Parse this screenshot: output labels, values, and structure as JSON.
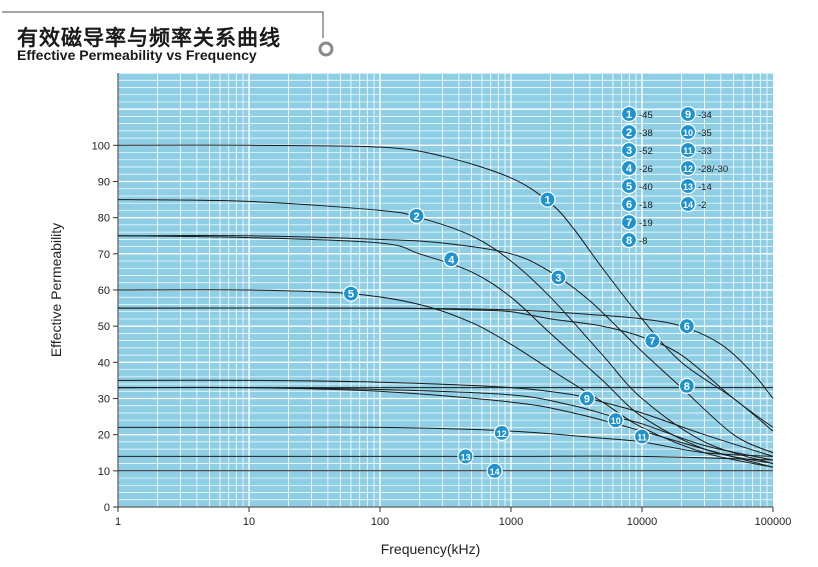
{
  "title_zh": "有效磁导率与频率关系曲线",
  "title_en": "Effective Permeability vs Frequency",
  "colors": {
    "plot_bg": "#8ecfe6",
    "grid": "#ffffff",
    "curve": "#1a1a1a",
    "marker": "#1f93cf",
    "marker_text": "#ffffff"
  },
  "chart_data": {
    "type": "line",
    "title": "Effective Permeability vs Frequency",
    "xlabel": "Frequency(kHz)",
    "ylabel": "Effective Permeability",
    "x_scale": "log",
    "xlim": [
      1,
      100000
    ],
    "ylim": [
      0,
      120
    ],
    "grid": true,
    "x_ticks": [
      1,
      10,
      100,
      1000,
      10000,
      100000
    ],
    "x_tick_labels": [
      "1",
      "10",
      "100",
      "1000",
      "10000",
      "100000"
    ],
    "y_ticks": [
      0,
      10,
      20,
      30,
      40,
      50,
      60,
      70,
      80,
      90,
      100
    ],
    "y_tick_labels": [
      "0",
      "10",
      "20",
      "30",
      "40",
      "50",
      "60",
      "70",
      "80",
      "90",
      "100"
    ],
    "legend_position": "top-right",
    "series": [
      {
        "name": "-45",
        "marker": "1",
        "marker_at": [
          1900,
          85
        ],
        "points": [
          [
            1,
            100
          ],
          [
            10,
            100
          ],
          [
            100,
            99.5
          ],
          [
            300,
            97
          ],
          [
            1000,
            91
          ],
          [
            2000,
            84
          ],
          [
            3000,
            77
          ],
          [
            5000,
            66
          ],
          [
            10000,
            52
          ],
          [
            20000,
            40
          ],
          [
            50000,
            30
          ],
          [
            100000,
            21
          ]
        ]
      },
      {
        "name": "-38",
        "marker": "2",
        "marker_at": [
          190,
          80.5
        ],
        "points": [
          [
            1,
            85
          ],
          [
            10,
            84.5
          ],
          [
            100,
            82
          ],
          [
            200,
            80
          ],
          [
            500,
            75
          ],
          [
            1000,
            68
          ],
          [
            2000,
            58
          ],
          [
            5000,
            42
          ],
          [
            10000,
            30
          ],
          [
            30000,
            18
          ],
          [
            100000,
            12
          ]
        ]
      },
      {
        "name": "-52",
        "marker": "3",
        "marker_at": [
          2300,
          63.5
        ],
        "points": [
          [
            1,
            75
          ],
          [
            10,
            75
          ],
          [
            100,
            74
          ],
          [
            300,
            73
          ],
          [
            1000,
            70
          ],
          [
            2000,
            65
          ],
          [
            4000,
            57
          ],
          [
            10000,
            43
          ],
          [
            20000,
            33
          ],
          [
            50000,
            20
          ],
          [
            100000,
            15
          ]
        ]
      },
      {
        "name": "-26",
        "marker": "4",
        "marker_at": [
          350,
          68.5
        ],
        "points": [
          [
            1,
            75
          ],
          [
            10,
            74.5
          ],
          [
            100,
            73
          ],
          [
            200,
            70
          ],
          [
            500,
            65
          ],
          [
            1000,
            58
          ],
          [
            2000,
            48
          ],
          [
            5000,
            35
          ],
          [
            10000,
            25
          ],
          [
            30000,
            16
          ],
          [
            100000,
            12
          ]
        ]
      },
      {
        "name": "-40",
        "marker": "5",
        "marker_at": [
          60,
          59
        ],
        "points": [
          [
            1,
            60
          ],
          [
            10,
            60
          ],
          [
            60,
            59
          ],
          [
            200,
            56
          ],
          [
            500,
            51
          ],
          [
            1000,
            45
          ],
          [
            2000,
            38
          ],
          [
            5000,
            29
          ],
          [
            10000,
            22
          ],
          [
            30000,
            15
          ],
          [
            100000,
            11
          ]
        ]
      },
      {
        "name": "-18",
        "marker": "6",
        "marker_at": [
          22000,
          50
        ],
        "points": [
          [
            1,
            55
          ],
          [
            100,
            55
          ],
          [
            1000,
            54.5
          ],
          [
            5000,
            53
          ],
          [
            10000,
            52
          ],
          [
            20000,
            50
          ],
          [
            40000,
            45
          ],
          [
            70000,
            37
          ],
          [
            100000,
            30
          ]
        ]
      },
      {
        "name": "-19",
        "marker": "7",
        "marker_at": [
          12000,
          46
        ],
        "points": [
          [
            1,
            55
          ],
          [
            100,
            55
          ],
          [
            500,
            54.5
          ],
          [
            1000,
            54
          ],
          [
            2000,
            52
          ],
          [
            5000,
            50
          ],
          [
            10000,
            47
          ],
          [
            20000,
            42
          ],
          [
            50000,
            30
          ],
          [
            100000,
            22
          ]
        ]
      },
      {
        "name": "-8",
        "marker": "8",
        "marker_at": [
          22000,
          33.5
        ],
        "points": [
          [
            1,
            33
          ],
          [
            1000,
            33
          ],
          [
            10000,
            33
          ],
          [
            100000,
            33
          ]
        ]
      },
      {
        "name": "-34",
        "marker": "9",
        "marker_at": [
          3800,
          30
        ],
        "points": [
          [
            1,
            35
          ],
          [
            10,
            35
          ],
          [
            100,
            34.5
          ],
          [
            1000,
            33
          ],
          [
            3000,
            31
          ],
          [
            5000,
            29
          ],
          [
            10000,
            26
          ],
          [
            30000,
            20
          ],
          [
            100000,
            14
          ]
        ]
      },
      {
        "name": "-35",
        "marker": "10",
        "marker_at": [
          6300,
          24
        ],
        "points": [
          [
            1,
            33
          ],
          [
            10,
            33
          ],
          [
            100,
            32.5
          ],
          [
            1000,
            31
          ],
          [
            3000,
            28
          ],
          [
            6000,
            25
          ],
          [
            10000,
            23
          ],
          [
            30000,
            17
          ],
          [
            100000,
            13
          ]
        ]
      },
      {
        "name": "-33",
        "marker": "11",
        "marker_at": [
          10000,
          19.5
        ],
        "points": [
          [
            1,
            33
          ],
          [
            10,
            33
          ],
          [
            100,
            32
          ],
          [
            1000,
            29
          ],
          [
            3000,
            26
          ],
          [
            10000,
            21
          ],
          [
            30000,
            16
          ],
          [
            100000,
            11
          ]
        ]
      },
      {
        "name": "-28/-30",
        "marker": "12",
        "marker_at": [
          850,
          20.5
        ],
        "points": [
          [
            1,
            22
          ],
          [
            10,
            22
          ],
          [
            100,
            22
          ],
          [
            1000,
            21
          ],
          [
            5000,
            19
          ],
          [
            10000,
            18
          ],
          [
            30000,
            15
          ],
          [
            100000,
            14
          ]
        ]
      },
      {
        "name": "-14",
        "marker": "13",
        "marker_at": [
          450,
          14
        ],
        "points": [
          [
            1,
            14
          ],
          [
            10,
            14
          ],
          [
            100,
            14
          ],
          [
            1000,
            14
          ],
          [
            10000,
            14
          ],
          [
            100000,
            13
          ]
        ]
      },
      {
        "name": "-2",
        "marker": "14",
        "marker_at": [
          750,
          10
        ],
        "points": [
          [
            1,
            10
          ],
          [
            100000,
            10
          ]
        ]
      }
    ]
  }
}
